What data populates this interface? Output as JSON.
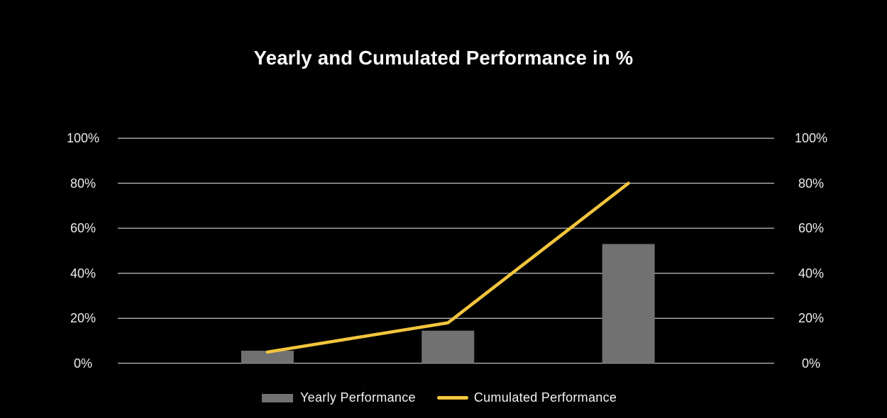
{
  "background": "#000000",
  "chart": {
    "title": "Yearly and Cumulated Performance in %"
  },
  "chart_data": {
    "type": "combo-bar-line",
    "categories": [
      "",
      "",
      ""
    ],
    "series": [
      {
        "name": "Yearly Performance",
        "type": "bar",
        "values": [
          5.6,
          14.5,
          53
        ],
        "color": "#717171"
      },
      {
        "name": "Cumulated Performance",
        "type": "line",
        "values": [
          5,
          18,
          80
        ],
        "color": "#F2C53D"
      }
    ],
    "ylim": [
      0,
      100
    ],
    "yticks": [
      0,
      20,
      40,
      60,
      80,
      100
    ],
    "ytick_labels": [
      "0%",
      "20%",
      "40%",
      "60%",
      "80%",
      "100%"
    ],
    "grid": true,
    "gridline_color": "#F1F1F1",
    "dual_axis": true,
    "legend_position": "bottom"
  },
  "legend": {
    "items": [
      {
        "label": "Yearly Performance",
        "swatch": "bar",
        "color": "#717171"
      },
      {
        "label": "Cumulated Performance",
        "swatch": "line",
        "color": "#F2C53D"
      }
    ]
  }
}
